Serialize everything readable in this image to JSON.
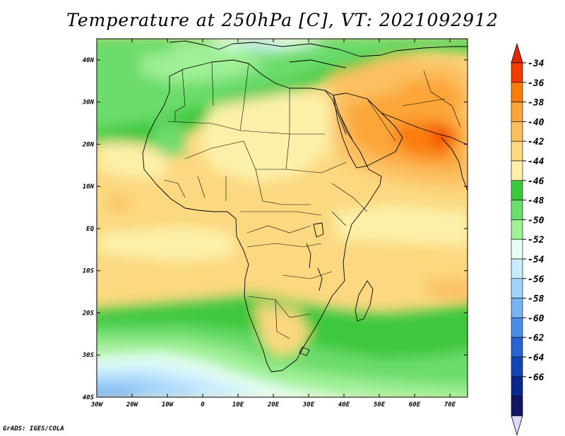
{
  "title": "Temperature at 250hPa [C], VT: 2021092912",
  "credit": "GrADS: IGES/COLA",
  "map": {
    "projection": "lat-lon",
    "lon_range": [
      -30,
      75
    ],
    "lat_range": [
      -40,
      45
    ],
    "x_ticks": [
      "30W",
      "20W",
      "10W",
      "0",
      "10E",
      "20E",
      "30E",
      "40E",
      "50E",
      "60E",
      "70E"
    ],
    "y_ticks": [
      "40N",
      "30N",
      "20N",
      "10N",
      "EQ",
      "10S",
      "20S",
      "30S",
      "40S"
    ]
  },
  "colorbar": {
    "labels": [
      "-34",
      "-36",
      "-38",
      "-40",
      "-42",
      "-44",
      "-46",
      "-48",
      "-50",
      "-52",
      "-54",
      "-56",
      "-58",
      "-60",
      "-62",
      "-64",
      "-66"
    ],
    "colors": [
      "#f03c00",
      "#fa7d0a",
      "#fca538",
      "#fcc060",
      "#fcd880",
      "#fcf0a8",
      "#3cc83c",
      "#6cdc6c",
      "#a0f096",
      "#e6fff4",
      "#c8ebff",
      "#a0d2fa",
      "#78b4f0",
      "#4b8ce6",
      "#2864d2",
      "#1444b4",
      "#0a288c",
      "#141464"
    ],
    "top_triangle": "#e62800",
    "bottom_triangle": "#e0d8ff"
  }
}
